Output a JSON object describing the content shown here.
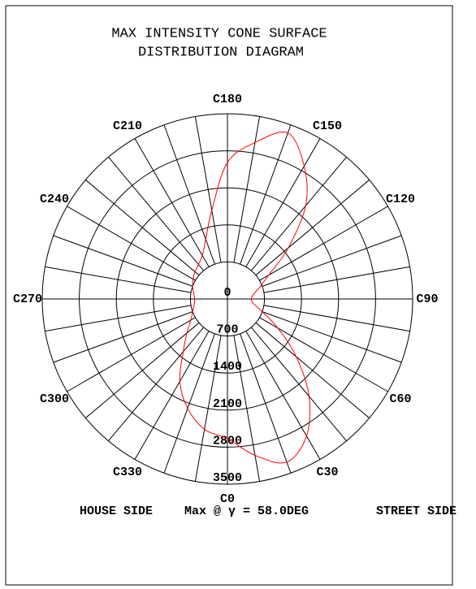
{
  "chart_data": {
    "type": "polar",
    "title": [
      "MAX INTENSITY CONE SURFACE",
      "DISTRIBUTION DIAGRAM"
    ],
    "thetaticks": [
      {
        "value": 0,
        "label": "C0"
      },
      {
        "value": 30,
        "label": "C30"
      },
      {
        "value": 60,
        "label": "C60"
      },
      {
        "value": 90,
        "label": "C90"
      },
      {
        "value": 120,
        "label": "C120"
      },
      {
        "value": 150,
        "label": "C150"
      },
      {
        "value": 180,
        "label": "C180"
      },
      {
        "value": 210,
        "label": "C210"
      },
      {
        "value": 240,
        "label": "C240"
      },
      {
        "value": 270,
        "label": "C270"
      },
      {
        "value": 300,
        "label": "C300"
      },
      {
        "value": 330,
        "label": "C330"
      }
    ],
    "rlim": [
      0,
      3500
    ],
    "rticks": [
      0,
      700,
      1400,
      2100,
      2800,
      3500
    ],
    "series": [
      {
        "color": "#ff0000",
        "x": [
          0,
          10,
          20,
          30,
          40,
          50,
          60,
          70,
          80,
          90,
          100,
          110,
          120,
          130,
          140,
          150,
          160,
          170,
          180,
          190,
          200,
          210,
          220,
          230,
          240,
          250,
          260,
          270,
          280,
          290,
          300,
          310,
          320,
          330,
          340,
          350
        ],
        "values": [
          2640,
          3000,
          3280,
          2990,
          2400,
          1700,
          1100,
          700,
          500,
          450,
          500,
          650,
          900,
          1500,
          2300,
          2900,
          3340,
          3000,
          2580,
          1700,
          1200,
          950,
          850,
          800,
          750,
          700,
          650,
          620,
          640,
          700,
          800,
          1000,
          1300,
          1800,
          2200,
          2500
        ]
      }
    ],
    "annotations": [
      "HOUSE SIDE",
      "Max @ γ = 58.0DEG",
      "STREET SIDE"
    ]
  }
}
